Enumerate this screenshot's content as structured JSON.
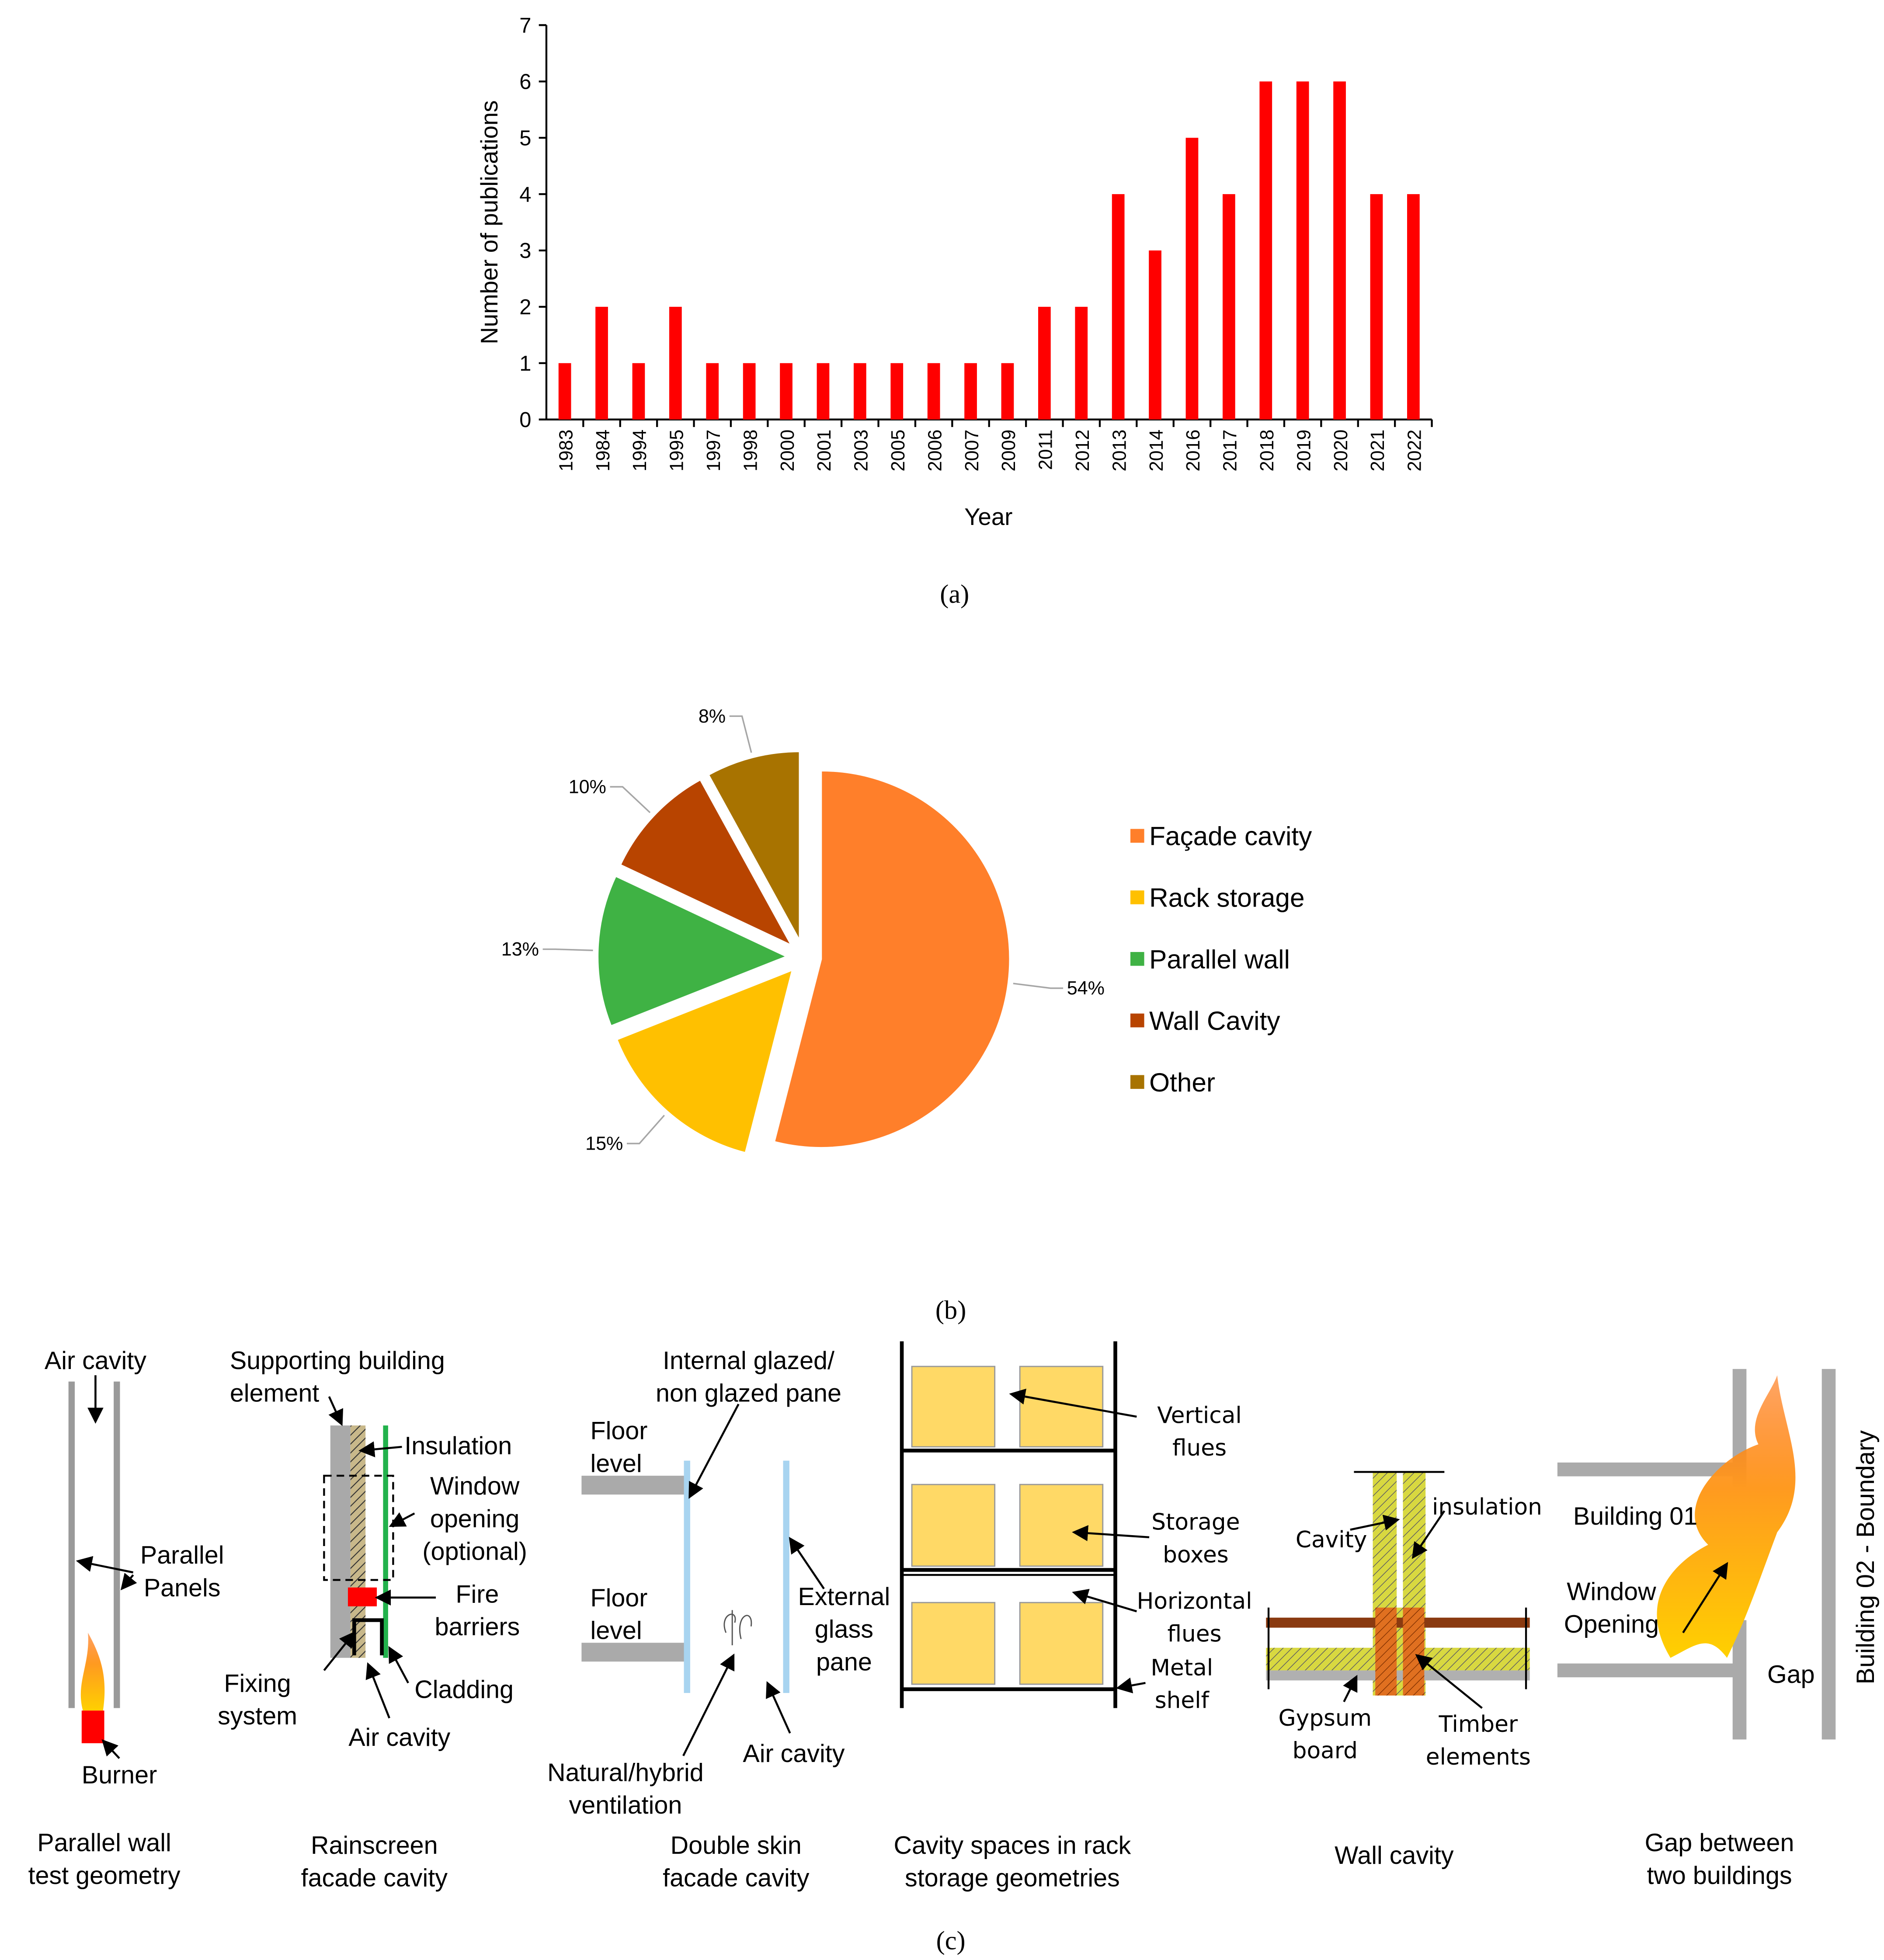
{
  "chart_data": [
    {
      "type": "bar",
      "xlabel": "Year",
      "ylabel": "Number of publications",
      "categories": [
        "1983",
        "1984",
        "1994",
        "1995",
        "1997",
        "1998",
        "2000",
        "2001",
        "2003",
        "2005",
        "2006",
        "2007",
        "2009",
        "2011",
        "2012",
        "2013",
        "2014",
        "2016",
        "2017",
        "2018",
        "2019",
        "2020",
        "2021",
        "2022"
      ],
      "values": [
        1,
        2,
        1,
        2,
        1,
        1,
        1,
        1,
        1,
        1,
        1,
        1,
        1,
        2,
        2,
        4,
        3,
        5,
        4,
        6,
        6,
        6,
        4,
        4
      ],
      "color": "#ff0000",
      "ylim": [
        0,
        7
      ],
      "yticks": [
        0,
        1,
        2,
        3,
        4,
        5,
        6,
        7
      ]
    },
    {
      "type": "pie",
      "categories": [
        "Façade cavity",
        "Rack storage",
        "Parallel wall",
        "Wall Cavity",
        "Other"
      ],
      "values": [
        54,
        15,
        13,
        10,
        8
      ],
      "value_labels": [
        "54%",
        "15%",
        "13%",
        "10%",
        "8%"
      ],
      "colors": [
        "#ff7f2a",
        "#ffc000",
        "#3fb244",
        "#b84400",
        "#a87300"
      ]
    }
  ],
  "panel_labels": [
    "(a)",
    "(b)",
    "(c)"
  ],
  "diagrams": [
    {
      "labels": [
        [
          "Air cavity"
        ],
        [
          "Parallel",
          "Panels"
        ],
        [
          "Burner"
        ]
      ],
      "caption": [
        "Parallel wall",
        "test geometry"
      ]
    },
    {
      "labels": [
        [
          "Supporting building",
          "element"
        ],
        [
          "Insulation"
        ],
        [
          "Window",
          "opening",
          "(optional)"
        ],
        [
          "Fire",
          "barriers"
        ],
        [
          "Fixing",
          "system"
        ],
        [
          "Cladding"
        ],
        [
          "Air cavity"
        ]
      ],
      "caption": [
        "Rainscreen",
        "facade cavity"
      ]
    },
    {
      "labels": [
        [
          "Internal glazed/",
          "non glazed pane"
        ],
        [
          "Floor",
          "level"
        ],
        [
          "Floor",
          "level"
        ],
        [
          "External",
          "glass",
          "pane"
        ],
        [
          "Natural/hybrid",
          "ventilation"
        ],
        [
          "Air cavity"
        ]
      ],
      "caption": [
        "Double skin",
        "facade cavity"
      ]
    },
    {
      "labels": [
        [
          "Vertical",
          "flues"
        ],
        [
          "Storage",
          "boxes"
        ],
        [
          "Horizontal",
          "flues"
        ],
        [
          "Metal",
          "shelf"
        ]
      ],
      "caption": [
        "Cavity spaces in rack",
        "storage geometries"
      ]
    },
    {
      "labels": [
        [
          "Cavity"
        ],
        [
          "insulation"
        ],
        [
          "Gypsum",
          "board"
        ],
        [
          "Timber",
          "elements"
        ]
      ],
      "caption": [
        "Wall cavity"
      ]
    },
    {
      "labels": [
        [
          "Building 01"
        ],
        [
          "Window",
          "Opening"
        ],
        [
          "Gap"
        ],
        [
          "Building 02 - Boundary"
        ]
      ],
      "caption": [
        "Gap between",
        "two buildings"
      ]
    }
  ]
}
